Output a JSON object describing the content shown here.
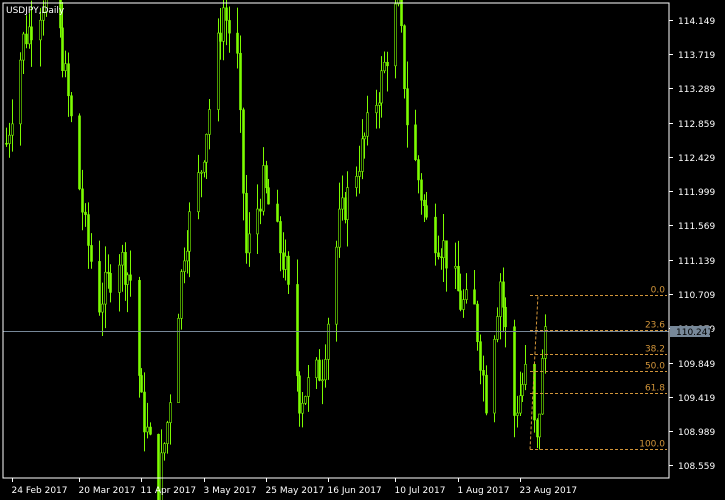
{
  "symbol_label": "USDJPY,Daily",
  "price_ticks": [
    "114.149",
    "113.719",
    "113.289",
    "112.859",
    "112.429",
    "111.999",
    "111.569",
    "111.139",
    "110.709",
    "110.279",
    "109.849",
    "109.419",
    "108.989",
    "108.559"
  ],
  "date_ticks": [
    "24 Feb 2017",
    "20 Mar 2017",
    "11 Apr 2017",
    "3 May 2017",
    "25 May 2017",
    "16 Jun 2017",
    "10 Jul 2017",
    "1 Aug 2017",
    "23 Aug 2017"
  ],
  "current_price": "110.247",
  "fib_levels": [
    {
      "label": "0.0",
      "price": 110.7
    },
    {
      "label": "23.6",
      "price": 110.26
    },
    {
      "label": "38.2",
      "price": 109.96
    },
    {
      "label": "50.0",
      "price": 109.74
    },
    {
      "label": "61.8",
      "price": 109.47
    },
    {
      "label": "100.0",
      "price": 108.76
    }
  ],
  "colors": {
    "background": "#000000",
    "candle": "#7CFC00",
    "axis": "#ffffff",
    "fib": "#D2953A",
    "price_line": "#778899",
    "price_box": "#778899"
  },
  "chart_data": {
    "type": "candlestick",
    "title": "USDJPY,Daily",
    "ylim": [
      108.4,
      114.36
    ],
    "xrange": [
      "2017-02-22",
      "2017-09-01"
    ],
    "swings": [
      {
        "date": "2017-02-22",
        "price": 112.6
      },
      {
        "date": "2017-02-28",
        "price": 113.9
      },
      {
        "date": "2017-03-03",
        "price": 114.1
      },
      {
        "date": "2017-03-10",
        "price": 114.6
      },
      {
        "date": "2017-03-14",
        "price": 113.7
      },
      {
        "date": "2017-03-22",
        "price": 111.5
      },
      {
        "date": "2017-03-27",
        "price": 110.6
      },
      {
        "date": "2017-04-03",
        "price": 111.2
      },
      {
        "date": "2017-04-07",
        "price": 110.9
      },
      {
        "date": "2017-04-11",
        "price": 109.3
      },
      {
        "date": "2017-04-17",
        "price": 108.3
      },
      {
        "date": "2017-04-20",
        "price": 109.1
      },
      {
        "date": "2017-04-26",
        "price": 111.3
      },
      {
        "date": "2017-05-02",
        "price": 112.3
      },
      {
        "date": "2017-05-10",
        "price": 114.3
      },
      {
        "date": "2017-05-15",
        "price": 113.6
      },
      {
        "date": "2017-05-18",
        "price": 111.2
      },
      {
        "date": "2017-05-24",
        "price": 112.1
      },
      {
        "date": "2017-06-01",
        "price": 111.0
      },
      {
        "date": "2017-06-06",
        "price": 109.4
      },
      {
        "date": "2017-06-14",
        "price": 109.8
      },
      {
        "date": "2017-06-20",
        "price": 111.6
      },
      {
        "date": "2017-06-27",
        "price": 112.4
      },
      {
        "date": "2017-07-05",
        "price": 113.4
      },
      {
        "date": "2017-07-11",
        "price": 114.4
      },
      {
        "date": "2017-07-14",
        "price": 112.9
      },
      {
        "date": "2017-07-21",
        "price": 111.6
      },
      {
        "date": "2017-07-27",
        "price": 111.3
      },
      {
        "date": "2017-08-02",
        "price": 110.6
      },
      {
        "date": "2017-08-07",
        "price": 110.5
      },
      {
        "date": "2017-08-11",
        "price": 109.4
      },
      {
        "date": "2017-08-16",
        "price": 110.9
      },
      {
        "date": "2017-08-21",
        "price": 109.2
      },
      {
        "date": "2017-08-25",
        "price": 109.7
      },
      {
        "date": "2017-08-29",
        "price": 108.8
      },
      {
        "date": "2017-09-01",
        "price": 110.3
      }
    ]
  }
}
